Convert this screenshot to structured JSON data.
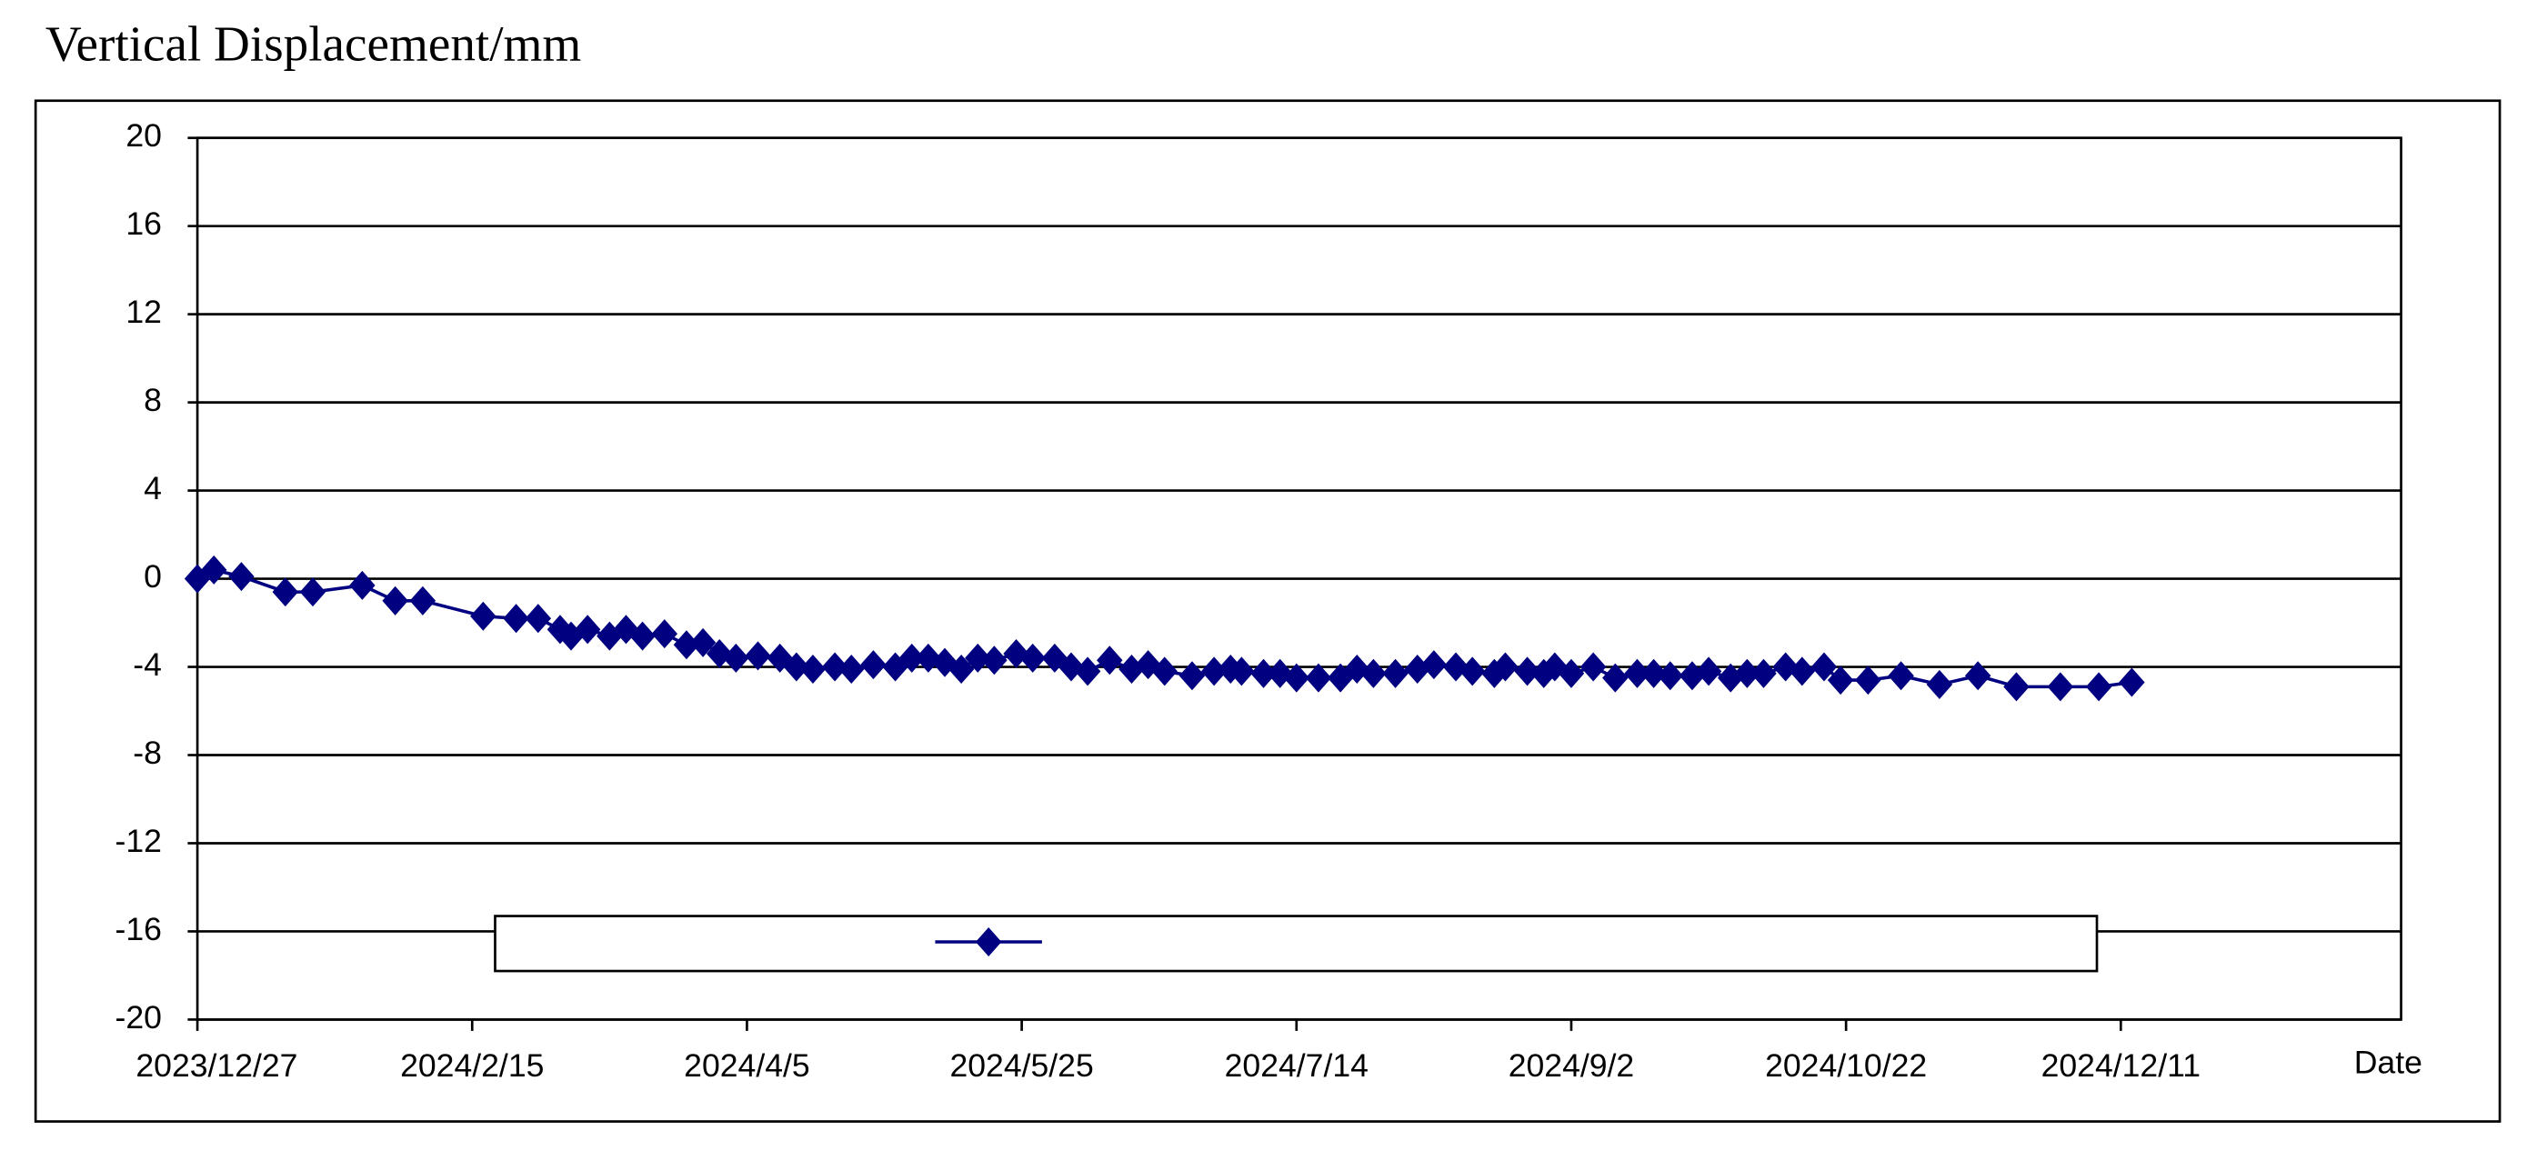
{
  "chart_data": {
    "type": "line",
    "title": "Vertical Displacement/mm",
    "xlabel": "Date",
    "x": [
      "2023/12/27",
      "2023/12/30",
      "2024/1/4",
      "2024/1/12",
      "2024/1/17",
      "2024/1/26",
      "2024/2/1",
      "2024/2/6",
      "2024/2/17",
      "2024/2/23",
      "2024/2/27",
      "2024/3/2",
      "2024/3/4",
      "2024/3/7",
      "2024/3/11",
      "2024/3/14",
      "2024/3/17",
      "2024/3/21",
      "2024/3/25",
      "2024/3/28",
      "2024/3/31",
      "2024/4/3",
      "2024/4/7",
      "2024/4/11",
      "2024/4/14",
      "2024/4/17",
      "2024/4/21",
      "2024/4/24",
      "2024/4/28",
      "2024/5/2",
      "2024/5/5",
      "2024/5/8",
      "2024/5/11",
      "2024/5/14",
      "2024/5/17",
      "2024/5/20",
      "2024/5/24",
      "2024/5/27",
      "2024/5/31",
      "2024/6/3",
      "2024/6/6",
      "2024/6/10",
      "2024/6/14",
      "2024/6/17",
      "2024/6/20",
      "2024/6/25",
      "2024/6/29",
      "2024/7/2",
      "2024/7/4",
      "2024/7/8",
      "2024/7/11",
      "2024/7/14",
      "2024/7/18",
      "2024/7/22",
      "2024/7/25",
      "2024/7/28",
      "2024/8/1",
      "2024/8/5",
      "2024/8/8",
      "2024/8/12",
      "2024/8/15",
      "2024/8/19",
      "2024/8/21",
      "2024/8/25",
      "2024/8/28",
      "2024/8/30",
      "2024/9/2",
      "2024/9/6",
      "2024/9/10",
      "2024/9/14",
      "2024/9/17",
      "2024/9/20",
      "2024/9/24",
      "2024/9/27",
      "2024/10/1",
      "2024/10/4",
      "2024/10/7",
      "2024/10/11",
      "2024/10/14",
      "2024/10/18",
      "2024/10/21",
      "2024/10/26",
      "2024/11/1",
      "2024/11/8",
      "2024/11/15",
      "2024/11/22",
      "2024/11/30",
      "2024/12/7",
      "2024/12/13"
    ],
    "series": [
      {
        "color": "#000080",
        "values": [
          0,
          0.4,
          0.1,
          -0.6,
          -0.6,
          -0.3,
          -1.0,
          -1.0,
          -1.7,
          -1.8,
          -1.8,
          -2.3,
          -2.6,
          -2.3,
          -2.6,
          -2.3,
          -2.6,
          -2.5,
          -3.0,
          -2.9,
          -3.4,
          -3.6,
          -3.5,
          -3.6,
          -4.0,
          -4.1,
          -4.0,
          -4.1,
          -3.9,
          -4.0,
          -3.6,
          -3.6,
          -3.8,
          -4.1,
          -3.6,
          -3.7,
          -3.4,
          -3.6,
          -3.6,
          -4.0,
          -4.2,
          -3.7,
          -4.1,
          -3.9,
          -4.2,
          -4.4,
          -4.2,
          -4.1,
          -4.2,
          -4.3,
          -4.3,
          -4.5,
          -4.5,
          -4.5,
          -4.1,
          -4.3,
          -4.3,
          -4.1,
          -3.9,
          -4.0,
          -4.2,
          -4.3,
          -4.0,
          -4.2,
          -4.3,
          -4.0,
          -4.3,
          -4.0,
          -4.5,
          -4.3,
          -4.3,
          -4.4,
          -4.4,
          -4.2,
          -4.5,
          -4.3,
          -4.3,
          -4.0,
          -4.2,
          -4.0,
          -4.6,
          -4.6,
          -4.4,
          -4.8,
          -4.4,
          -4.9,
          -4.9,
          -4.9,
          -4.7
        ]
      }
    ],
    "xlim": [
      "2023/12/27",
      "2025/1/31"
    ],
    "xticks": [
      "2023/12/27",
      "2024/2/15",
      "2024/4/5",
      "2024/5/25",
      "2024/7/14",
      "2024/9/2",
      "2024/10/22",
      "2024/12/11"
    ],
    "ylim": [
      -20,
      20
    ],
    "yticks": [
      -20,
      -16,
      -12,
      -8,
      -4,
      0,
      4,
      8,
      12,
      16,
      20
    ],
    "grid": true,
    "legend": "bottom"
  }
}
